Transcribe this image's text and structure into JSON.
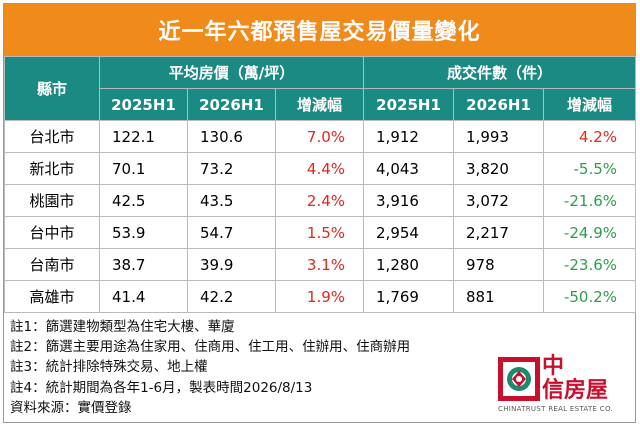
{
  "title": "近一年六都預售屋交易價量變化",
  "table": {
    "city_header": "縣市",
    "group_price": "平均房價（萬/坪）",
    "group_volume": "成交件數（件）",
    "sub_headers": [
      "2025H1",
      "2026H1",
      "增減幅",
      "2025H1",
      "2026H1",
      "增減幅"
    ],
    "rows": [
      {
        "city": "台北市",
        "p1": "122.1",
        "p2": "130.6",
        "pc": "7.0%",
        "v1": "1,912",
        "v2": "1,993",
        "vc": "4.2%",
        "vc_sign": "pos"
      },
      {
        "city": "新北市",
        "p1": "70.1",
        "p2": "73.2",
        "pc": "4.4%",
        "v1": "4,043",
        "v2": "3,820",
        "vc": "-5.5%",
        "vc_sign": "neg"
      },
      {
        "city": "桃園市",
        "p1": "42.5",
        "p2": "43.5",
        "pc": "2.4%",
        "v1": "3,916",
        "v2": "3,072",
        "vc": "-21.6%",
        "vc_sign": "neg"
      },
      {
        "city": "台中市",
        "p1": "53.9",
        "p2": "54.7",
        "pc": "1.5%",
        "v1": "2,954",
        "v2": "2,217",
        "vc": "-24.9%",
        "vc_sign": "neg"
      },
      {
        "city": "台南市",
        "p1": "38.7",
        "p2": "39.9",
        "pc": "3.1%",
        "v1": "1,280",
        "v2": "978",
        "vc": "-23.6%",
        "vc_sign": "neg"
      },
      {
        "city": "高雄市",
        "p1": "41.4",
        "p2": "42.2",
        "pc": "1.9%",
        "v1": "1,769",
        "v2": "881",
        "vc": "-50.2%",
        "vc_sign": "neg"
      }
    ]
  },
  "notes": [
    "註1：篩選建物類型為住宅大樓、華廈",
    "註2：篩選主要用途為住家用、住商用、住工用、住辦用、住商辦用",
    "註3：統計排除特殊交易、地上權",
    "註4：統計期間為各年1-6月，製表時間2026/8/13",
    "資料來源：實價登錄"
  ],
  "logo": {
    "zh_line1": "中",
    "zh_line2": "信房屋",
    "en": "CHINATRUST REAL ESTATE CO.",
    "icon": "chinatrust-logo-icon"
  },
  "colors": {
    "title_bg": "#f08a1a",
    "header_bg": "#1a8a82",
    "increase": "#e0291e",
    "decrease": "#2e9e4a"
  }
}
